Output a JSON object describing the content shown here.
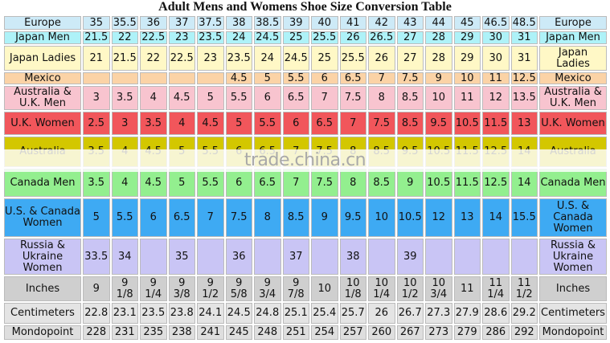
{
  "table": {
    "title": "Adult Mens and Womens Shoe Size Conversion Table",
    "rows": [
      {
        "label": "Europe",
        "color": "#cdeaf7",
        "cells": [
          "35",
          "35.5",
          "36",
          "37",
          "37.5",
          "38",
          "38.5",
          "39",
          "40",
          "41",
          "42",
          "43",
          "44",
          "45",
          "46.5",
          "48.5"
        ]
      },
      {
        "label": "Japan Men",
        "color": "#aef2f8",
        "cells": [
          "21.5",
          "22",
          "22.5",
          "23",
          "23.5",
          "24",
          "24.5",
          "25",
          "25.5",
          "26",
          "26.5",
          "27",
          "28",
          "29",
          "30",
          "31"
        ]
      },
      {
        "label": "Japan Ladies",
        "color": "#fff8c6",
        "cells": [
          "21",
          "21.5",
          "22",
          "22.5",
          "23",
          "23.5",
          "24",
          "24.5",
          "25",
          "25.5",
          "26",
          "27",
          "28",
          "29",
          "30",
          "31"
        ]
      },
      {
        "label": "Mexico",
        "color": "#fbd3a6",
        "cells": [
          null,
          null,
          null,
          null,
          null,
          "4.5",
          "5",
          "5.5",
          "6",
          "6.5",
          "7",
          "7.5",
          "9",
          "10",
          "11",
          "12.5"
        ]
      },
      {
        "label": "Australia & U.K. Men",
        "color": "#f8c4cf",
        "cells": [
          "3",
          "3.5",
          "4",
          "4.5",
          "5",
          "5.5",
          "6",
          "6.5",
          "7",
          "7.5",
          "8",
          "8.5",
          "10",
          "11",
          "12",
          "13.5"
        ]
      },
      {
        "label": "U.K. Women",
        "color": "#f1565b",
        "cells": [
          "2.5",
          "3",
          "3.5",
          "4",
          "4.5",
          "5",
          "5.5",
          "6",
          "6.5",
          "7",
          "7.5",
          "8.5",
          "9.5",
          "10.5",
          "11.5",
          "13"
        ]
      },
      {
        "label": "Australia",
        "color": "#d3c700",
        "cells": [
          "3.5",
          "4",
          "4.5",
          "5",
          "5.5",
          "6",
          "6.5",
          "7",
          "7.5",
          "8",
          "8.5",
          "9.5",
          "10.5",
          "11.5",
          "12.5",
          "14"
        ]
      },
      {
        "label": "Canada Men",
        "color": "#93ef8f",
        "cells": [
          "3.5",
          "4",
          "4.5",
          "5",
          "5.5",
          "6",
          "6.5",
          "7",
          "7.5",
          "8",
          "8.5",
          "9",
          "10.5",
          "11.5",
          "12.5",
          "14"
        ]
      },
      {
        "label": "U.S. & Canada Women",
        "color": "#3eaaf3",
        "cells": [
          "5",
          "5.5",
          "6",
          "6.5",
          "7",
          "7.5",
          "8",
          "8.5",
          "9",
          "9.5",
          "10",
          "10.5",
          "12",
          "13",
          "14",
          "15.5"
        ]
      },
      {
        "label": "Russia & Ukraine Women",
        "color": "#c9c5f5",
        "cells": [
          "33.5",
          "34",
          null,
          "35",
          null,
          "36",
          null,
          "37",
          null,
          "38",
          null,
          "39",
          null,
          null,
          null,
          null
        ]
      },
      {
        "label": "Inches",
        "color": "#cfcfcf",
        "cells": [
          "9",
          "9 1/8",
          "9 1/4",
          "9 3/8",
          "9 1/2",
          "9 5/8",
          "9 3/4",
          "9 7/8",
          "10",
          "10 1/8",
          "10 1/4",
          "10 1/2",
          "10 3/4",
          "11",
          "11 1/4",
          "11 1/2"
        ]
      },
      {
        "label": "Centimeters",
        "color": "#e4e4e4",
        "cells": [
          "22.8",
          "23.1",
          "23.5",
          "23.8",
          "24.1",
          "24.5",
          "24.8",
          "25.1",
          "25.4",
          "25.7",
          "26",
          "26.7",
          "27.3",
          "27.9",
          "28.6",
          "29.2"
        ]
      },
      {
        "label": "Mondopoint",
        "color": "#dedede",
        "cells": [
          "228",
          "231",
          "235",
          "238",
          "241",
          "245",
          "248",
          "251",
          "254",
          "257",
          "260",
          "267",
          "273",
          "279",
          "286",
          "292"
        ]
      }
    ]
  },
  "watermark": "trade.china.cn"
}
